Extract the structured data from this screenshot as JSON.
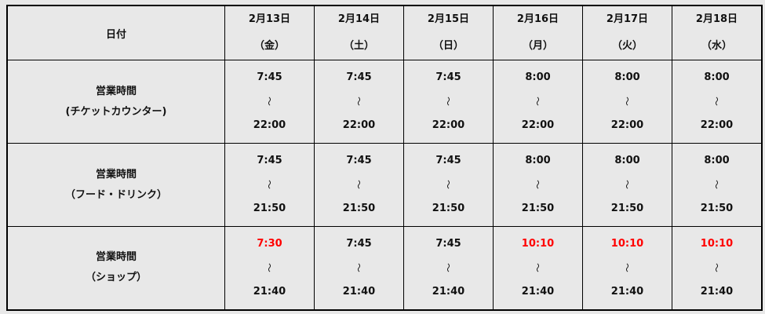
{
  "header": {
    "label": "日付",
    "days": [
      {
        "date": "2月13日",
        "weekday": "（金）"
      },
      {
        "date": "2月14日",
        "weekday": "（土）"
      },
      {
        "date": "2月15日",
        "weekday": "（日）"
      },
      {
        "date": "2月16日",
        "weekday": "（月）"
      },
      {
        "date": "2月17日",
        "weekday": "（火）"
      },
      {
        "date": "2月18日",
        "weekday": "（水）"
      }
    ]
  },
  "separator": "〜",
  "highlight_color": "#ff0000",
  "rows": [
    {
      "title": "営業時間",
      "subtitle": "(チケットカウンター)",
      "cells": [
        {
          "open": "7:45",
          "close": "22:00",
          "highlight": false
        },
        {
          "open": "7:45",
          "close": "22:00",
          "highlight": false
        },
        {
          "open": "7:45",
          "close": "22:00",
          "highlight": false
        },
        {
          "open": "8:00",
          "close": "22:00",
          "highlight": false
        },
        {
          "open": "8:00",
          "close": "22:00",
          "highlight": false
        },
        {
          "open": "8:00",
          "close": "22:00",
          "highlight": false
        }
      ]
    },
    {
      "title": "営業時間",
      "subtitle": "（フード・ドリンク）",
      "cells": [
        {
          "open": "7:45",
          "close": "21:50",
          "highlight": false
        },
        {
          "open": "7:45",
          "close": "21:50",
          "highlight": false
        },
        {
          "open": "7:45",
          "close": "21:50",
          "highlight": false
        },
        {
          "open": "8:00",
          "close": "21:50",
          "highlight": false
        },
        {
          "open": "8:00",
          "close": "21:50",
          "highlight": false
        },
        {
          "open": "8:00",
          "close": "21:50",
          "highlight": false
        }
      ]
    },
    {
      "title": "営業時間",
      "subtitle": "（ショップ）",
      "cells": [
        {
          "open": "7:30",
          "close": "21:40",
          "highlight": true
        },
        {
          "open": "7:45",
          "close": "21:40",
          "highlight": false
        },
        {
          "open": "7:45",
          "close": "21:40",
          "highlight": false
        },
        {
          "open": "10:10",
          "close": "21:40",
          "highlight": true
        },
        {
          "open": "10:10",
          "close": "21:40",
          "highlight": true
        },
        {
          "open": "10:10",
          "close": "21:40",
          "highlight": true
        }
      ]
    }
  ]
}
